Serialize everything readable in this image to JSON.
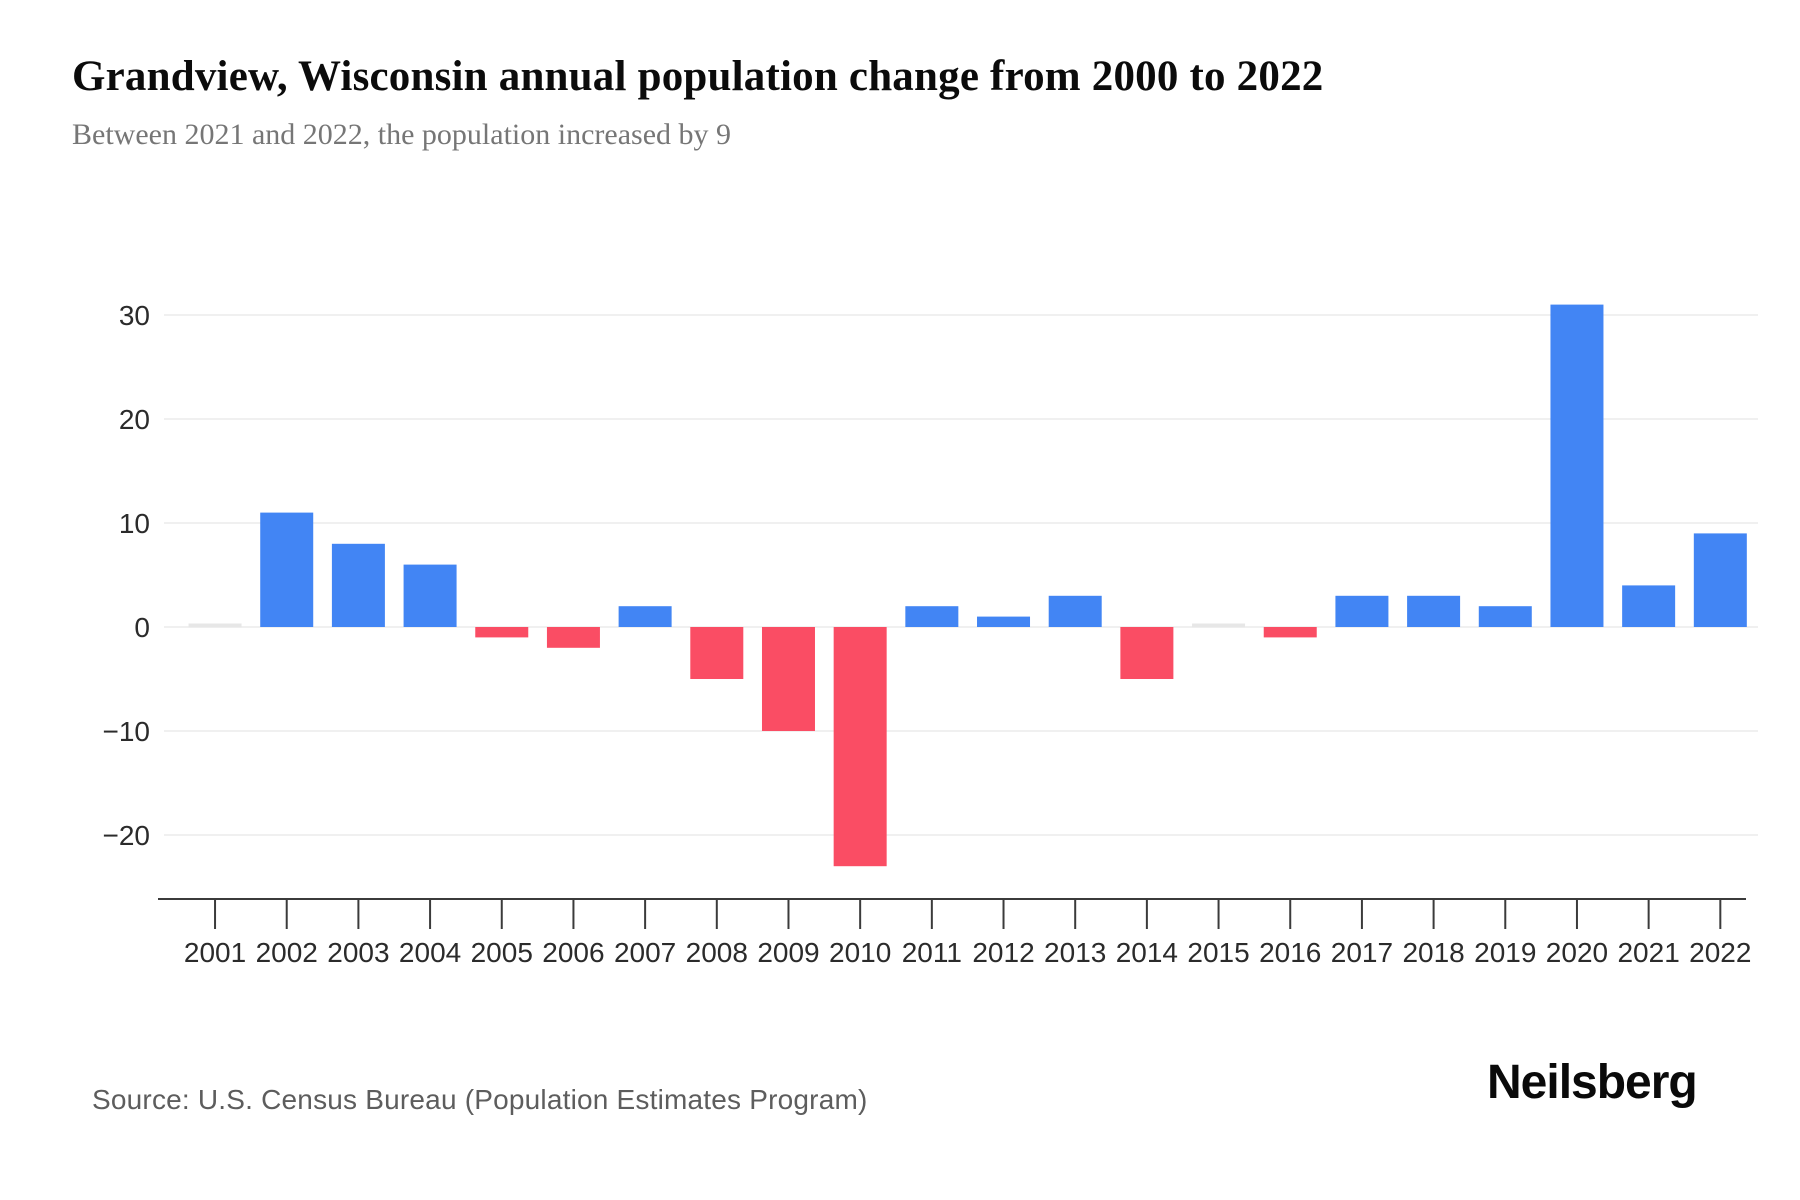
{
  "header": {
    "title": "Grandview, Wisconsin annual population change from 2000 to 2022",
    "subtitle": "Between 2021 and 2022, the population increased by 9"
  },
  "footer": {
    "source": "Source: U.S. Census Bureau (Population Estimates Program)",
    "brand": "Neilsberg"
  },
  "colors": {
    "positive_bar": "#4285F4",
    "negative_bar": "#FA4D64",
    "zero_bar": "#E7E7E7",
    "gridline": "#ECECEC",
    "axis": "#3B3B3B",
    "tick_label": "#2B2B2B"
  },
  "chart_data": {
    "type": "bar",
    "title": "Grandview, Wisconsin annual population change from 2000 to 2022",
    "subtitle": "Between 2021 and 2022, the population increased by 9",
    "xlabel": "",
    "ylabel": "",
    "categories": [
      "2001",
      "2002",
      "2003",
      "2004",
      "2005",
      "2006",
      "2007",
      "2008",
      "2009",
      "2010",
      "2011",
      "2012",
      "2013",
      "2014",
      "2015",
      "2016",
      "2017",
      "2018",
      "2019",
      "2020",
      "2021",
      "2022"
    ],
    "values": [
      0,
      11,
      8,
      6,
      -1,
      -2,
      2,
      -5,
      -10,
      -23,
      2,
      1,
      3,
      -5,
      0,
      -1,
      3,
      3,
      2,
      31,
      4,
      9
    ],
    "y_ticks": [
      30,
      20,
      10,
      0,
      -10,
      -20
    ],
    "ylim": [
      -26,
      35
    ],
    "grid": "horizontal",
    "legend": "none"
  }
}
